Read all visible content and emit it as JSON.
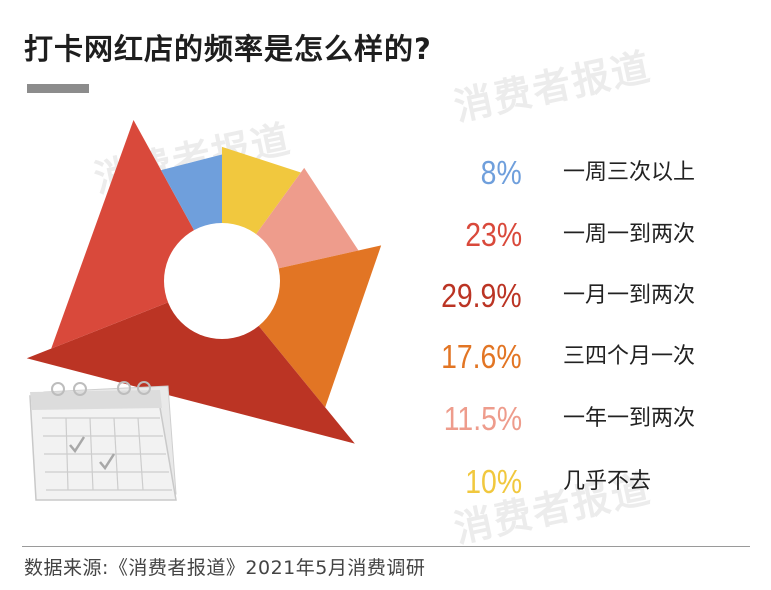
{
  "header": {
    "title": "打卡网红店的频率是怎么样的?"
  },
  "watermark_text": "消费者报道",
  "chart_data": {
    "type": "pie",
    "title": "打卡网红店的频率是怎么样的?",
    "categories": [
      "一周三次以上",
      "一周一到两次",
      "一月一到两次",
      "三四个月一次",
      "一年一到两次",
      "几乎不去"
    ],
    "values": [
      8,
      23,
      29.9,
      17.6,
      11.5,
      10
    ],
    "value_labels": [
      "8%",
      "23%",
      "29.9%",
      "17.6%",
      "11.5%",
      "10%"
    ],
    "colors": [
      "#6f9fdc",
      "#d9493b",
      "#bb3424",
      "#e27524",
      "#ee9c8c",
      "#f1c83e"
    ],
    "legend_position": "right"
  },
  "footer": {
    "source": "数据来源:《消费者报道》2021年5月消费调研"
  }
}
